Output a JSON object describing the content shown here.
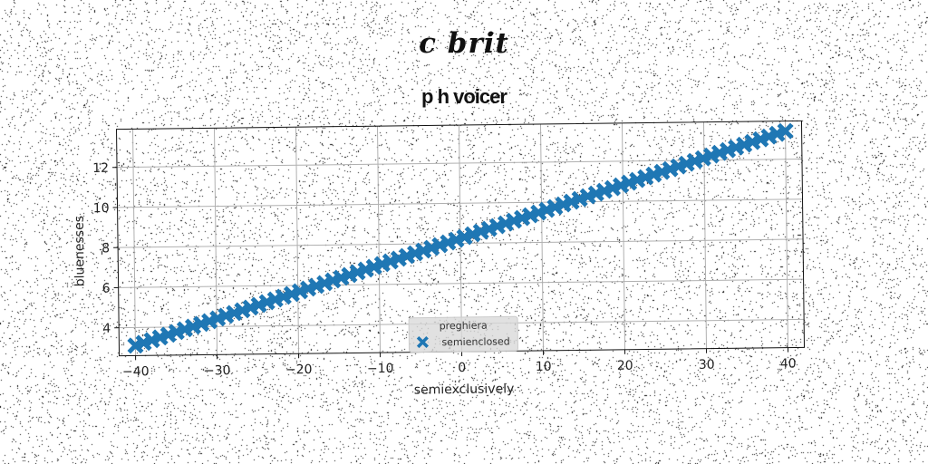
{
  "suptitle": "c brit",
  "chart_data": {
    "type": "scatter",
    "title": "p h voicer",
    "xlabel": "semiexclusively",
    "ylabel": "bluenesses",
    "xlim": [
      -42,
      42
    ],
    "ylim": [
      2.6,
      13.9
    ],
    "xticks": [
      -40,
      -30,
      -20,
      -10,
      0,
      10,
      20,
      30,
      40
    ],
    "yticks": [
      4,
      6,
      8,
      10,
      12
    ],
    "grid": true,
    "legend": {
      "title": "preghiera",
      "placement": "lower-center"
    },
    "series": [
      {
        "name": "semienclosed",
        "marker": "X",
        "color": "#1f77b4",
        "x_start": -40,
        "x_end": 40,
        "n_points": 80,
        "y_start": 3.1,
        "y_end": 13.4
      }
    ]
  }
}
